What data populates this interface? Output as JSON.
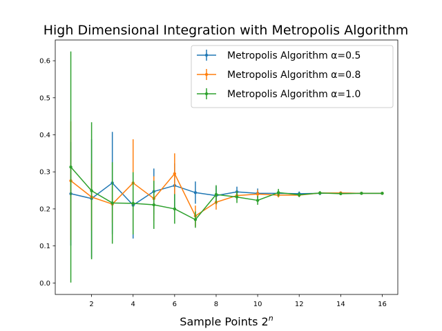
{
  "chart_data": {
    "type": "line",
    "title": "High Dimensional Integration with Metropolis Algorithm",
    "xlabel_text": "Sample Points  2",
    "xlabel_sup": "n",
    "ylabel": "",
    "xlim": [
      0.25,
      16.75
    ],
    "ylim": [
      -0.031,
      0.656
    ],
    "xticks": [
      2,
      4,
      6,
      8,
      10,
      12,
      14,
      16
    ],
    "yticks": [
      0.0,
      0.1,
      0.2,
      0.3,
      0.4,
      0.5,
      0.6
    ],
    "ytick_labels": [
      "0.0",
      "0.1",
      "0.2",
      "0.3",
      "0.4",
      "0.5",
      "0.6"
    ],
    "legend_position": "top-right",
    "x": [
      1,
      2,
      3,
      4,
      5,
      6,
      7,
      8,
      9,
      10,
      11,
      12,
      13,
      14,
      15,
      16
    ],
    "series": [
      {
        "name": "Metropolis Algorithm α=0.5",
        "color": "#1f77b4",
        "values": [
          0.241,
          0.228,
          0.27,
          0.21,
          0.247,
          0.263,
          0.244,
          0.236,
          0.246,
          0.242,
          0.242,
          0.241,
          0.242,
          0.243,
          0.242,
          0.242
        ],
        "errors": [
          0.14,
          0.16,
          0.138,
          0.09,
          0.062,
          0.06,
          0.03,
          0.025,
          0.014,
          0.013,
          0.009,
          0.006,
          0.005,
          0.004,
          0.003,
          0.002
        ]
      },
      {
        "name": "Metropolis Algorithm α=0.8",
        "color": "#ff7f0e",
        "values": [
          0.276,
          0.232,
          0.213,
          0.27,
          0.228,
          0.295,
          0.181,
          0.218,
          0.236,
          0.24,
          0.237,
          0.237,
          0.243,
          0.243,
          0.242,
          0.242
        ],
        "errors": [
          0.16,
          0.09,
          0.05,
          0.118,
          0.06,
          0.055,
          0.028,
          0.02,
          0.012,
          0.011,
          0.006,
          0.005,
          0.004,
          0.003,
          0.002,
          0.002
        ]
      },
      {
        "name": "Metropolis Algorithm α=1.0",
        "color": "#2ca02c",
        "values": [
          0.313,
          0.249,
          0.216,
          0.215,
          0.211,
          0.2,
          0.171,
          0.239,
          0.232,
          0.223,
          0.244,
          0.238,
          0.243,
          0.241,
          0.242,
          0.242
        ],
        "errors": [
          0.312,
          0.185,
          0.11,
          0.084,
          0.065,
          0.04,
          0.022,
          0.025,
          0.016,
          0.012,
          0.01,
          0.006,
          0.005,
          0.003,
          0.002,
          0.002
        ]
      }
    ]
  }
}
